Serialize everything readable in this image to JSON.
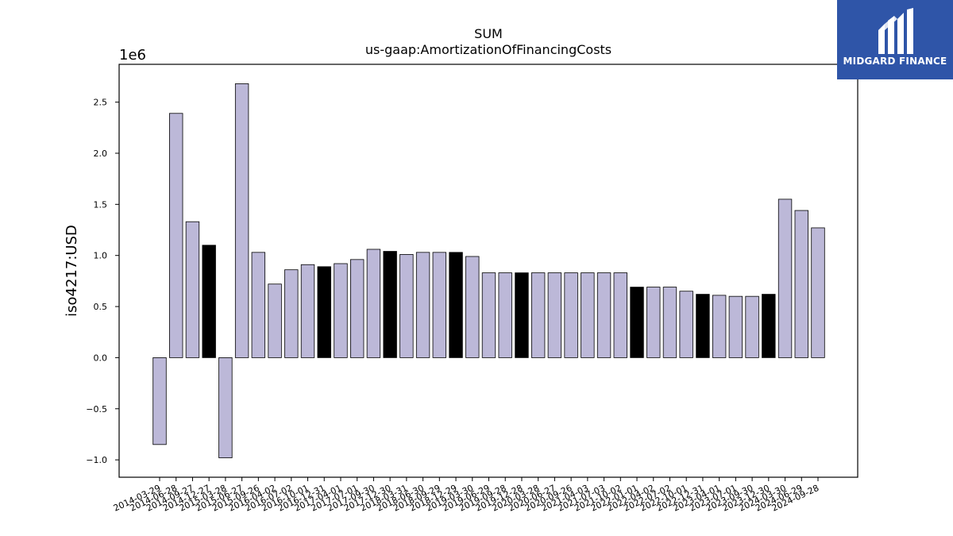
{
  "chart_data": {
    "type": "bar",
    "title": "SUM",
    "subtitle": "us-gaap:AmortizationOfFinancingCosts",
    "ylabel": "iso4217:USD",
    "xlabel": "",
    "y_multiplier_label": "1e6",
    "ylim": [
      -1.17,
      2.87
    ],
    "yticks": [
      -1.0,
      -0.5,
      0.0,
      0.5,
      1.0,
      1.5,
      2.0,
      2.5
    ],
    "ytick_labels": [
      "−1.0",
      "−0.5",
      "0.0",
      "0.5",
      "1.0",
      "1.5",
      "2.0",
      "2.5"
    ],
    "grid": false,
    "colors": {
      "normal": "#bcb8d8",
      "highlight": "#000000",
      "edge": "#000000"
    },
    "categories": [
      "2014-03-29",
      "2014-06-28",
      "2014-09-27",
      "2014-12-27",
      "2015-03-28",
      "2015-06-27",
      "2015-09-26",
      "2016-04-02",
      "2016-07-02",
      "2016-10-01",
      "2016-12-31",
      "2017-04-01",
      "2017-07-01",
      "2017-09-30",
      "2017-12-30",
      "2018-03-31",
      "2018-06-30",
      "2018-09-29",
      "2018-12-29",
      "2019-03-30",
      "2019-06-29",
      "2019-09-28",
      "2019-12-28",
      "2020-03-28",
      "2020-06-27",
      "2020-09-26",
      "2021-04-03",
      "2021-07-03",
      "2021-10-02",
      "2022-01-01",
      "2022-04-02",
      "2022-07-02",
      "2022-10-01",
      "2022-12-31",
      "2023-04-01",
      "2023-07-01",
      "2023-09-30",
      "2023-12-30",
      "2024-03-30",
      "2024-06-29",
      "2024-09-28"
    ],
    "values": [
      -0.85,
      2.39,
      1.33,
      1.1,
      -0.98,
      2.68,
      1.03,
      0.72,
      0.86,
      0.91,
      0.89,
      0.92,
      0.96,
      1.06,
      1.04,
      1.01,
      1.03,
      1.03,
      1.03,
      0.99,
      0.83,
      0.83,
      0.83,
      0.83,
      0.83,
      0.83,
      0.83,
      0.83,
      0.83,
      0.69,
      0.69,
      0.69,
      0.65,
      0.62,
      0.61,
      0.6,
      0.6,
      0.62,
      1.55,
      1.44,
      1.27
    ],
    "highlight": [
      false,
      false,
      false,
      true,
      false,
      false,
      false,
      false,
      false,
      false,
      true,
      false,
      false,
      false,
      true,
      false,
      false,
      false,
      true,
      false,
      false,
      false,
      true,
      false,
      false,
      false,
      false,
      false,
      false,
      true,
      false,
      false,
      false,
      true,
      false,
      false,
      false,
      true,
      false,
      false,
      false
    ]
  },
  "logo": {
    "text": "MIDGARD FINANCE"
  }
}
